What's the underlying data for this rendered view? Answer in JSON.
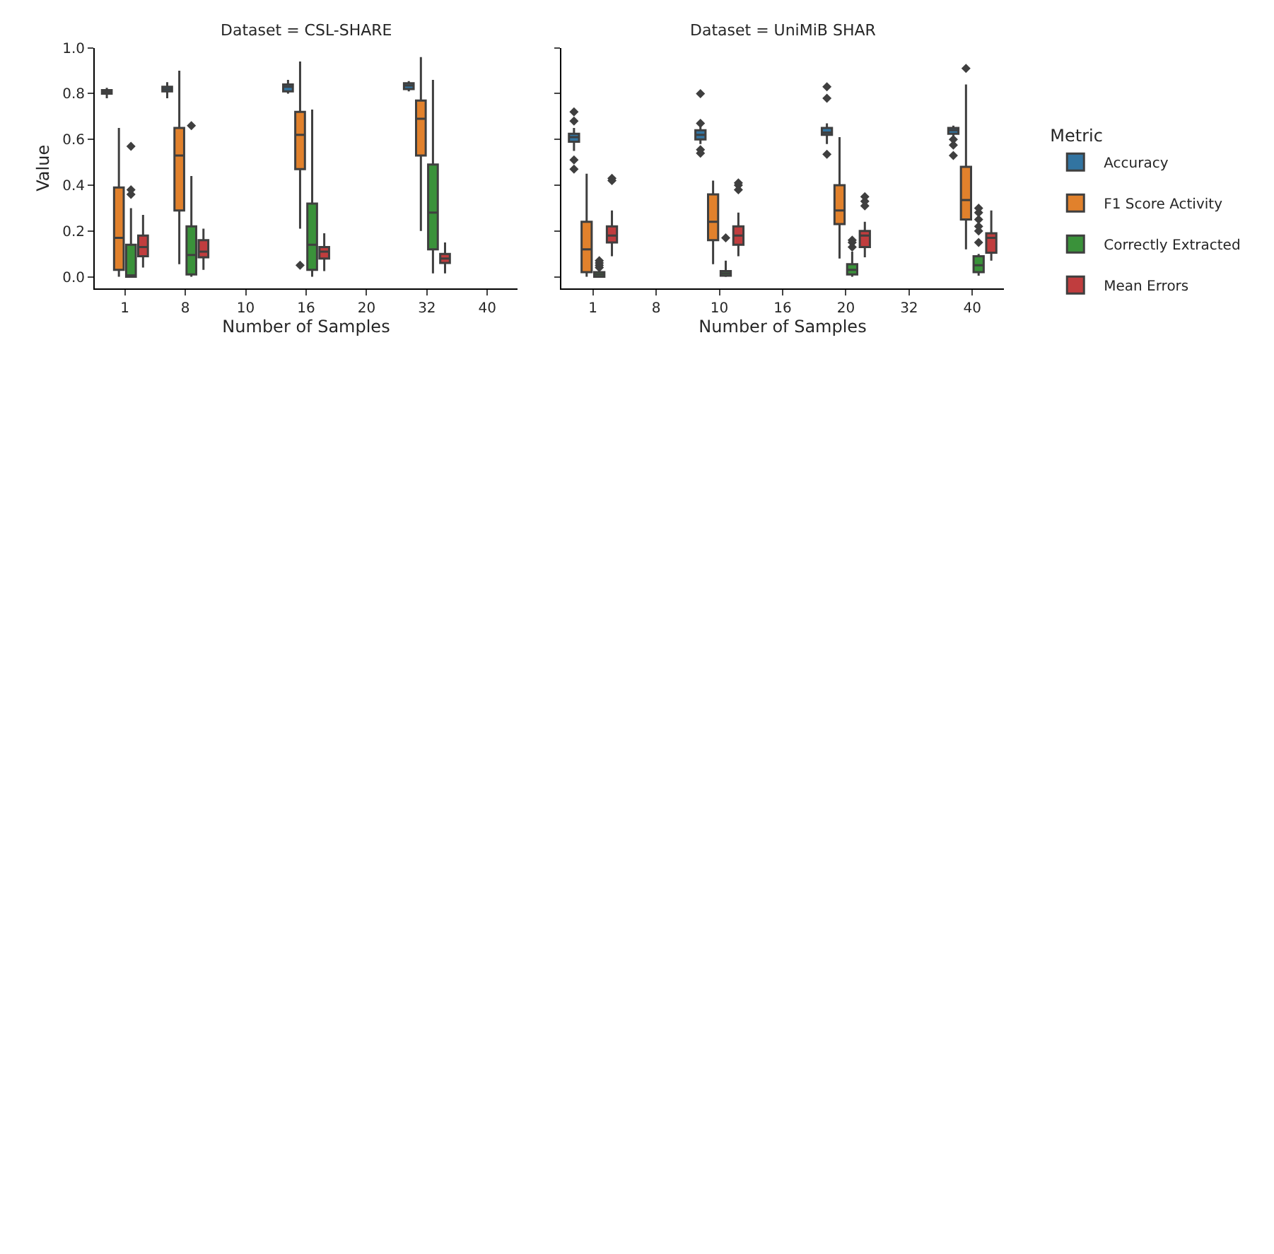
{
  "chart_data": [
    {
      "type": "box",
      "title": "Dataset = CSL-SHARE",
      "xlabel": "Number of Samples",
      "ylabel": "Value",
      "categories": [
        "1",
        "8",
        "10",
        "16",
        "20",
        "32",
        "40"
      ],
      "ylim": [
        -0.05,
        1.0
      ],
      "yticks": [
        {
          "value": 0,
          "label": "0.0"
        },
        {
          "value": 0.2,
          "label": "0.2"
        },
        {
          "value": 0.4,
          "label": "0.4"
        },
        {
          "value": 0.6,
          "label": "0.6"
        },
        {
          "value": 0.8,
          "label": "0.8"
        },
        {
          "value": 1,
          "label": "1.0"
        }
      ],
      "legend": "right",
      "legend_title": "Metric",
      "series": [
        {
          "name": "Accuracy",
          "color": "#3274a1",
          "boxes": [
            {
              "low": 0.78,
              "q1": 0.8,
              "median": 0.81,
              "q3": 0.815,
              "high": 0.825
            },
            {
              "low": 0.78,
              "q1": 0.81,
              "median": 0.82,
              "q3": 0.83,
              "high": 0.85
            },
            null,
            {
              "low": 0.8,
              "q1": 0.81,
              "median": 0.83,
              "q3": 0.84,
              "high": 0.86
            },
            null,
            {
              "low": 0.81,
              "q1": 0.82,
              "median": 0.835,
              "q3": 0.845,
              "high": 0.855
            },
            null
          ]
        },
        {
          "name": "F1 Score Activity",
          "color": "#e1812c",
          "boxes": [
            {
              "low": 0.0,
              "q1": 0.03,
              "median": 0.17,
              "q3": 0.39,
              "high": 0.65
            },
            {
              "low": 0.055,
              "q1": 0.29,
              "median": 0.53,
              "q3": 0.65,
              "high": 0.9
            },
            null,
            {
              "low": 0.21,
              "q1": 0.47,
              "median": 0.62,
              "q3": 0.72,
              "high": 0.94,
              "outliers": [
                0.05
              ]
            },
            null,
            {
              "low": 0.2,
              "q1": 0.53,
              "median": 0.69,
              "q3": 0.77,
              "high": 0.96
            },
            null
          ]
        },
        {
          "name": "Correctly Extracted",
          "color": "#3a923a",
          "boxes": [
            {
              "low": 0.0,
              "q1": 0.0,
              "median": 0.0,
              "q3": 0.14,
              "high": 0.3,
              "outliers": [
                0.36,
                0.38,
                0.57
              ]
            },
            {
              "low": 0.0,
              "q1": 0.01,
              "median": 0.095,
              "q3": 0.22,
              "high": 0.44,
              "outliers": [
                0.66
              ]
            },
            null,
            {
              "low": 0.0,
              "q1": 0.03,
              "median": 0.14,
              "q3": 0.32,
              "high": 0.73
            },
            null,
            {
              "low": 0.015,
              "q1": 0.12,
              "median": 0.28,
              "q3": 0.49,
              "high": 0.86
            },
            null
          ]
        },
        {
          "name": "Mean Errors",
          "color": "#c03d3e",
          "boxes": [
            {
              "low": 0.04,
              "q1": 0.09,
              "median": 0.13,
              "q3": 0.18,
              "high": 0.27
            },
            {
              "low": 0.03,
              "q1": 0.085,
              "median": 0.11,
              "q3": 0.16,
              "high": 0.21
            },
            null,
            {
              "low": 0.025,
              "q1": 0.08,
              "median": 0.11,
              "q3": 0.13,
              "high": 0.19
            },
            null,
            {
              "low": 0.015,
              "q1": 0.06,
              "median": 0.08,
              "q3": 0.1,
              "high": 0.15
            },
            null
          ]
        }
      ]
    },
    {
      "type": "box",
      "title": "Dataset = UniMiB SHAR",
      "xlabel": "Number of Samples",
      "categories": [
        "1",
        "8",
        "10",
        "16",
        "20",
        "32",
        "40"
      ],
      "ylim": [
        -0.05,
        1.0
      ],
      "yticks": [
        0,
        0.2,
        0.4,
        0.6,
        0.8,
        1
      ],
      "tick_labels": "x",
      "series": [
        {
          "color": "#3274a1",
          "boxes": [
            {
              "low": 0.55,
              "q1": 0.59,
              "median": 0.61,
              "q3": 0.625,
              "high": 0.65,
              "outliers": [
                0.47,
                0.51,
                0.68,
                0.72
              ]
            },
            null,
            {
              "low": 0.58,
              "q1": 0.6,
              "median": 0.62,
              "q3": 0.64,
              "high": 0.66,
              "outliers": [
                0.54,
                0.555,
                0.67,
                0.8
              ]
            },
            null,
            {
              "low": 0.58,
              "q1": 0.62,
              "median": 0.63,
              "q3": 0.65,
              "high": 0.67,
              "outliers": [
                0.535,
                0.78,
                0.83
              ]
            },
            null,
            {
              "low": 0.615,
              "q1": 0.625,
              "median": 0.64,
              "q3": 0.65,
              "high": 0.66,
              "outliers": [
                0.53,
                0.575,
                0.6
              ]
            }
          ]
        },
        {
          "color": "#e1812c",
          "boxes": [
            {
              "low": 0.0,
              "q1": 0.02,
              "median": 0.12,
              "q3": 0.24,
              "high": 0.45
            },
            null,
            {
              "low": 0.055,
              "q1": 0.16,
              "median": 0.24,
              "q3": 0.36,
              "high": 0.42
            },
            null,
            {
              "low": 0.08,
              "q1": 0.23,
              "median": 0.29,
              "q3": 0.4,
              "high": 0.61
            },
            null,
            {
              "low": 0.12,
              "q1": 0.25,
              "median": 0.335,
              "q3": 0.48,
              "high": 0.84,
              "outliers": [
                0.91
              ]
            }
          ]
        },
        {
          "color": "#3a923a",
          "boxes": [
            {
              "low": 0.0,
              "q1": 0.0,
              "median": 0.01,
              "q3": 0.02,
              "high": 0.03,
              "outliers": [
                0.04,
                0.05,
                0.06,
                0.07
              ]
            },
            null,
            {
              "low": 0.0,
              "q1": 0.005,
              "median": 0.015,
              "q3": 0.025,
              "high": 0.07,
              "outliers": [
                0.17
              ]
            },
            null,
            {
              "low": 0.0,
              "q1": 0.01,
              "median": 0.03,
              "q3": 0.055,
              "high": 0.11,
              "outliers": [
                0.13,
                0.15,
                0.16
              ]
            },
            null,
            {
              "low": 0.005,
              "q1": 0.02,
              "median": 0.05,
              "q3": 0.09,
              "high": 0.1,
              "outliers": [
                0.15,
                0.2,
                0.22,
                0.25,
                0.28,
                0.3
              ]
            }
          ]
        },
        {
          "color": "#c03d3e",
          "boxes": [
            {
              "low": 0.09,
              "q1": 0.15,
              "median": 0.18,
              "q3": 0.22,
              "high": 0.29,
              "outliers": [
                0.42,
                0.43
              ]
            },
            null,
            {
              "low": 0.09,
              "q1": 0.14,
              "median": 0.18,
              "q3": 0.22,
              "high": 0.28,
              "outliers": [
                0.38,
                0.4,
                0.41
              ]
            },
            null,
            {
              "low": 0.085,
              "q1": 0.13,
              "median": 0.18,
              "q3": 0.2,
              "high": 0.24,
              "outliers": [
                0.31,
                0.33,
                0.35
              ]
            },
            null,
            {
              "low": 0.07,
              "q1": 0.105,
              "median": 0.17,
              "q3": 0.19,
              "high": 0.29
            }
          ]
        }
      ]
    }
  ]
}
